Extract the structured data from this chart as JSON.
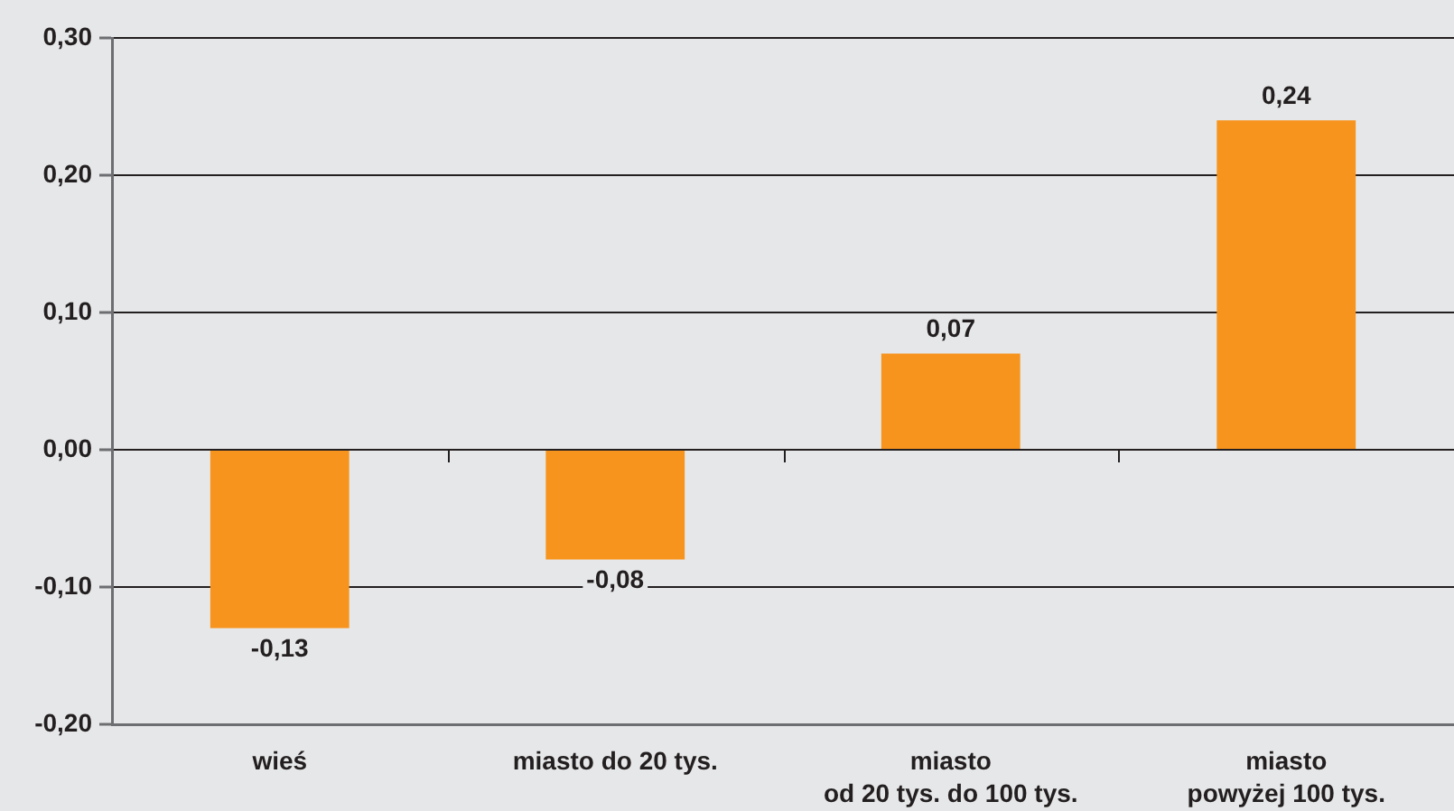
{
  "chart_data": {
    "type": "bar",
    "categories": [
      "wieś",
      "miasto do 20 tys.",
      "miasto\nod 20 tys. do 100 tys.",
      "miasto\npowyżej 100 tys."
    ],
    "values": [
      -0.13,
      -0.08,
      0.07,
      0.24
    ],
    "color": "#f7941d",
    "value_labels": [
      "-0,13",
      "-0,08",
      "0,07",
      "0,24"
    ],
    "ylim": [
      -0.2,
      0.3
    ],
    "yticks": [
      {
        "value": -0.2,
        "label": "-0,20"
      },
      {
        "value": -0.1,
        "label": "-0,10"
      },
      {
        "value": 0,
        "label": "0,00"
      },
      {
        "value": 0.1,
        "label": "0,10"
      },
      {
        "value": 0.2,
        "label": "0,20"
      },
      {
        "value": 0.3,
        "label": "0,30"
      }
    ],
    "grid": "y"
  }
}
